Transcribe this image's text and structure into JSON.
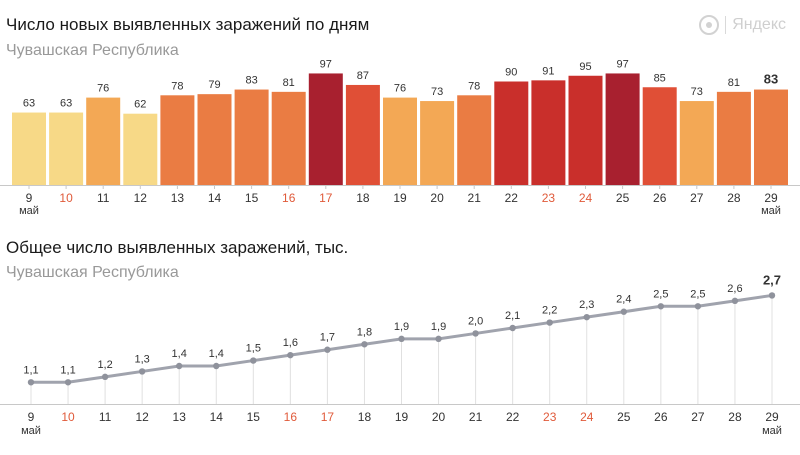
{
  "chart_data": [
    {
      "type": "bar",
      "title": "Число новых выявленных заражений по дням",
      "subtitle": "Чувашская Республика",
      "categories": [
        "9",
        "10",
        "11",
        "12",
        "13",
        "14",
        "15",
        "16",
        "17",
        "18",
        "19",
        "20",
        "21",
        "22",
        "23",
        "24",
        "25",
        "26",
        "27",
        "28",
        "29"
      ],
      "values": [
        63,
        63,
        76,
        62,
        78,
        79,
        83,
        81,
        97,
        87,
        76,
        73,
        78,
        90,
        91,
        95,
        97,
        85,
        73,
        81,
        83
      ],
      "value_labels": [
        "63",
        "63",
        "76",
        "62",
        "78",
        "79",
        "83",
        "81",
        "97",
        "87",
        "76",
        "73",
        "78",
        "90",
        "91",
        "95",
        "97",
        "85",
        "73",
        "81",
        "83"
      ],
      "month_label": "май",
      "weekend_categories": [
        "10",
        "16",
        "17",
        "23",
        "24"
      ],
      "grid": false,
      "colors": {
        "scale": [
          "#f7d987",
          "#f3a855",
          "#ea7c43",
          "#e04f36",
          "#c92f2b",
          "#a8202f"
        ],
        "weekend_tick": "#e05a3a",
        "tick": "#333333",
        "axis": "#c8c8c8"
      }
    },
    {
      "type": "line",
      "title": "Общее число выявленных заражений, тыс.",
      "subtitle": "Чувашская Республика",
      "categories": [
        "9",
        "10",
        "11",
        "12",
        "13",
        "14",
        "15",
        "16",
        "17",
        "18",
        "19",
        "20",
        "21",
        "22",
        "23",
        "24",
        "25",
        "26",
        "27",
        "28",
        "29"
      ],
      "values": [
        1.1,
        1.1,
        1.2,
        1.3,
        1.4,
        1.4,
        1.5,
        1.6,
        1.7,
        1.8,
        1.9,
        1.9,
        2.0,
        2.1,
        2.2,
        2.3,
        2.4,
        2.5,
        2.5,
        2.6,
        2.7
      ],
      "value_labels": [
        "1,1",
        "1,1",
        "1,2",
        "1,3",
        "1,4",
        "1,4",
        "1,5",
        "1,6",
        "1,7",
        "1,8",
        "1,9",
        "1,9",
        "2,0",
        "2,1",
        "2,2",
        "2,3",
        "2,4",
        "2,5",
        "2,5",
        "2,6",
        "2,7"
      ],
      "month_label": "май",
      "weekend_categories": [
        "10",
        "16",
        "17",
        "23",
        "24"
      ],
      "grid": true,
      "colors": {
        "line": "#a0a3ad",
        "point": "#8f929c",
        "gridline": "#e0e0e0",
        "weekend_tick": "#e05a3a",
        "tick": "#333333",
        "axis": "#c8c8c8"
      }
    }
  ],
  "brand": {
    "name": "Яндекс",
    "icon": "yandex-logo-icon"
  }
}
